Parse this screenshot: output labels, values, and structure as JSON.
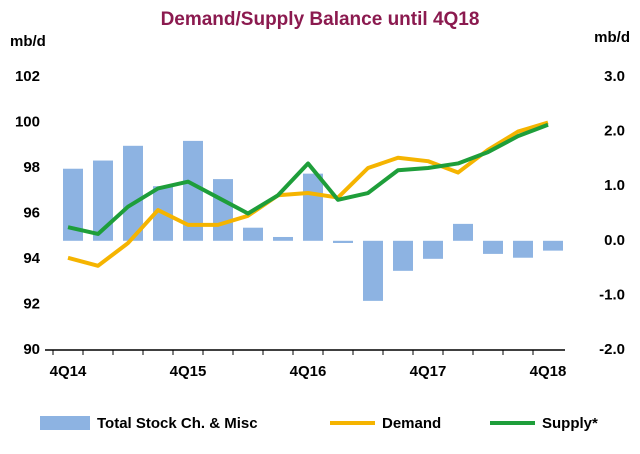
{
  "chart_data": {
    "type": "bar-line",
    "title": "Demand/Supply Balance until 4Q18",
    "y_label": "mb/d",
    "y2_label": "mb/d",
    "categories": [
      "4Q14",
      null,
      null,
      null,
      "4Q15",
      null,
      null,
      null,
      "4Q16",
      null,
      null,
      null,
      "4Q17",
      null,
      null,
      null,
      "4Q18"
    ],
    "ylim": [
      90,
      102
    ],
    "yticks": [
      90,
      92,
      94,
      96,
      98,
      100,
      102
    ],
    "y2lim": [
      -2.0,
      3.0
    ],
    "y2ticks": [
      {
        "value": -2,
        "label": "-2.0"
      },
      {
        "value": -1,
        "label": "-1.0"
      },
      {
        "value": 0,
        "label": "0.0"
      },
      {
        "value": 1,
        "label": "1.0"
      },
      {
        "value": 2,
        "label": "2.0"
      },
      {
        "value": 3,
        "label": "3.0"
      }
    ],
    "series": [
      {
        "name": "Total Stock Ch. & Misc",
        "type": "bar",
        "axis": "y2",
        "color": "#8db3e2",
        "values": [
          1.32,
          1.47,
          1.74,
          1.0,
          1.83,
          1.13,
          0.24,
          0.07,
          1.23,
          -0.04,
          -1.1,
          -0.55,
          -0.33,
          0.31,
          -0.24,
          -0.31,
          -0.18
        ]
      },
      {
        "name": "Demand",
        "type": "line",
        "color": "#f5b400",
        "values": [
          94.05,
          93.7,
          94.7,
          96.15,
          95.5,
          95.5,
          95.9,
          96.8,
          96.9,
          96.7,
          98.0,
          98.45,
          98.3,
          97.8,
          98.8,
          99.6,
          100.0
        ]
      },
      {
        "name": "Supply*",
        "type": "line",
        "color": "#1e9e3a",
        "values": [
          95.4,
          95.1,
          96.3,
          97.1,
          97.4,
          96.7,
          96.0,
          96.8,
          98.2,
          96.6,
          96.9,
          97.9,
          98.0,
          98.2,
          98.7,
          99.4,
          99.9
        ]
      }
    ]
  }
}
